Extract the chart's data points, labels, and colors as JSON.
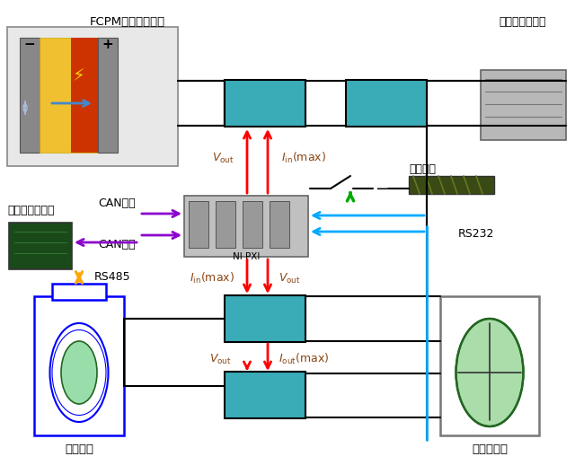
{
  "bg_color": "#ffffff",
  "teal_box_color": "#3AACB8",
  "arrow_red": "#FF0000",
  "arrow_blue": "#55AAFF",
  "arrow_cyan": "#00AAFF",
  "arrow_purple": "#8B00CC",
  "arrow_orange": "#FFA500",
  "arrow_green": "#00AA00",
  "line_black": "#000000",
  "labels": {
    "fcpm": "FCPM燃料电池模型",
    "three_phase": "三相可编程负载",
    "protection_r": "保护电阻",
    "bms": "锂电池管理系统",
    "can1": "CAN总线",
    "can2": "CAN总线",
    "rs232": "RS232",
    "rs485": "RS485",
    "battery": "锂电池组",
    "supercap": "超级电容组",
    "nipxi": "NI PXI"
  }
}
